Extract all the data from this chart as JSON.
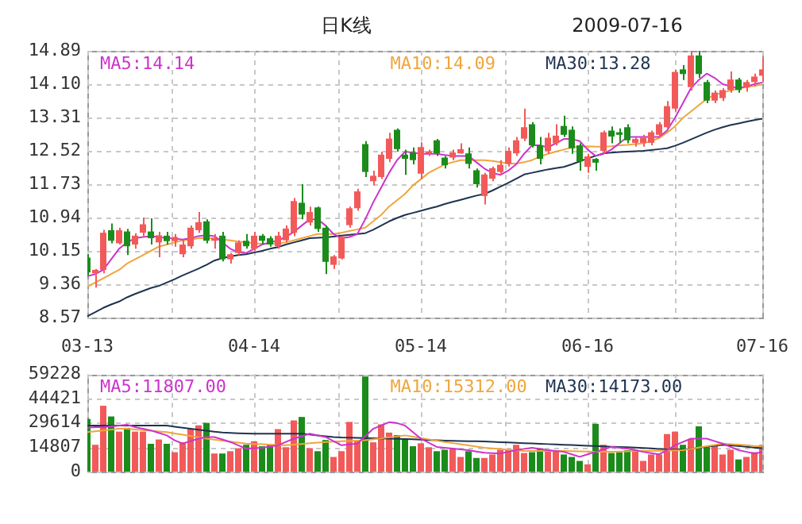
{
  "chart_data": [
    {
      "type": "candlestick",
      "title": "日K线",
      "subtitle": "2009-07-16",
      "categories": [
        "03-13",
        null,
        null,
        null,
        null,
        null,
        null,
        null,
        null,
        null,
        null,
        null,
        null,
        null,
        null,
        null,
        null,
        null,
        null,
        null,
        null,
        "04-14",
        null,
        null,
        null,
        null,
        null,
        null,
        null,
        null,
        null,
        null,
        null,
        null,
        null,
        null,
        null,
        null,
        null,
        null,
        null,
        null,
        "05-14",
        null,
        null,
        null,
        null,
        null,
        null,
        null,
        null,
        null,
        null,
        null,
        null,
        null,
        null,
        null,
        null,
        null,
        null,
        null,
        null,
        "06-16",
        null,
        null,
        null,
        null,
        null,
        null,
        null,
        null,
        null,
        null,
        null,
        null,
        null,
        null,
        null,
        null,
        null,
        null,
        null,
        null,
        null,
        "07-16"
      ],
      "ohlc": [
        [
          9.99,
          10.07,
          9.57,
          9.64
        ],
        [
          9.62,
          9.72,
          9.28,
          9.7
        ],
        [
          9.7,
          10.65,
          9.62,
          10.58
        ],
        [
          10.64,
          10.8,
          10.33,
          10.39
        ],
        [
          10.33,
          10.7,
          10.3,
          10.64
        ],
        [
          10.61,
          10.67,
          10.05,
          10.26
        ],
        [
          10.3,
          10.57,
          10.2,
          10.51
        ],
        [
          10.58,
          10.94,
          10.5,
          10.78
        ],
        [
          10.61,
          10.92,
          10.3,
          10.45
        ],
        [
          10.35,
          10.6,
          10.0,
          10.52
        ],
        [
          10.51,
          10.6,
          10.3,
          10.38
        ],
        [
          10.38,
          10.55,
          10.25,
          10.48
        ],
        [
          10.07,
          10.42,
          10.0,
          10.3
        ],
        [
          10.26,
          10.75,
          10.2,
          10.7
        ],
        [
          10.64,
          11.07,
          10.58,
          10.83
        ],
        [
          10.85,
          10.9,
          10.33,
          10.39
        ],
        [
          10.39,
          10.55,
          10.2,
          10.45
        ],
        [
          10.51,
          10.6,
          9.9,
          9.95
        ],
        [
          9.95,
          10.1,
          9.85,
          10.07
        ],
        [
          10.1,
          10.4,
          10.05,
          10.35
        ],
        [
          10.39,
          10.55,
          10.2,
          10.26
        ],
        [
          10.2,
          10.6,
          10.15,
          10.51
        ],
        [
          10.51,
          10.55,
          10.3,
          10.39
        ],
        [
          10.45,
          10.5,
          10.25,
          10.3
        ],
        [
          10.26,
          10.6,
          10.2,
          10.51
        ],
        [
          10.4,
          10.75,
          10.35,
          10.68
        ],
        [
          10.58,
          11.4,
          10.5,
          11.33
        ],
        [
          11.29,
          11.73,
          10.9,
          11.01
        ],
        [
          10.82,
          11.2,
          10.75,
          11.07
        ],
        [
          11.18,
          11.2,
          10.6,
          10.67
        ],
        [
          10.7,
          10.75,
          9.6,
          9.89
        ],
        [
          9.82,
          10.05,
          9.72,
          10.02
        ],
        [
          9.97,
          10.5,
          9.95,
          10.48
        ],
        [
          10.76,
          11.2,
          10.7,
          11.16
        ],
        [
          11.16,
          11.62,
          11.1,
          11.56
        ],
        [
          12.68,
          12.75,
          11.9,
          12.02
        ],
        [
          11.8,
          12.05,
          11.7,
          11.93
        ],
        [
          11.9,
          12.5,
          11.85,
          12.43
        ],
        [
          12.33,
          12.95,
          12.25,
          12.81
        ],
        [
          13.02,
          13.05,
          12.5,
          12.56
        ],
        [
          12.43,
          12.55,
          11.95,
          12.33
        ],
        [
          12.48,
          12.6,
          12.2,
          12.3
        ],
        [
          11.98,
          12.72,
          11.85,
          12.61
        ],
        [
          12.46,
          12.55,
          12.4,
          12.51
        ],
        [
          12.77,
          12.8,
          12.4,
          12.46
        ],
        [
          12.36,
          12.4,
          12.1,
          12.18
        ],
        [
          12.36,
          12.55,
          12.3,
          12.48
        ],
        [
          12.46,
          12.7,
          12.45,
          12.56
        ],
        [
          12.46,
          12.6,
          12.1,
          12.21
        ],
        [
          12.06,
          12.1,
          11.65,
          11.73
        ],
        [
          11.45,
          12.0,
          11.25,
          11.96
        ],
        [
          11.86,
          12.15,
          11.8,
          12.11
        ],
        [
          12.02,
          12.3,
          11.95,
          12.19
        ],
        [
          12.21,
          12.6,
          12.15,
          12.52
        ],
        [
          12.46,
          12.85,
          12.4,
          12.77
        ],
        [
          12.81,
          13.52,
          12.75,
          13.08
        ],
        [
          13.15,
          13.2,
          12.6,
          12.65
        ],
        [
          12.65,
          12.85,
          12.2,
          12.33
        ],
        [
          12.52,
          12.95,
          12.45,
          12.83
        ],
        [
          12.7,
          13.15,
          12.65,
          12.88
        ],
        [
          13.11,
          13.35,
          12.85,
          12.9
        ],
        [
          13.02,
          13.1,
          12.45,
          12.58
        ],
        [
          12.65,
          12.7,
          12.05,
          12.27
        ],
        [
          12.14,
          12.45,
          12.0,
          12.39
        ],
        [
          12.33,
          12.35,
          12.05,
          12.24
        ],
        [
          12.52,
          13.0,
          12.45,
          12.96
        ],
        [
          13.0,
          13.1,
          12.7,
          12.86
        ],
        [
          12.96,
          13.05,
          12.7,
          12.9
        ],
        [
          13.08,
          13.15,
          12.7,
          12.77
        ],
        [
          12.71,
          12.85,
          12.62,
          12.8
        ],
        [
          12.71,
          12.9,
          12.62,
          12.83
        ],
        [
          12.71,
          13.0,
          12.65,
          12.96
        ],
        [
          12.9,
          13.2,
          12.85,
          13.15
        ],
        [
          13.08,
          13.7,
          13.05,
          13.58
        ],
        [
          13.52,
          14.45,
          13.45,
          14.39
        ],
        [
          14.45,
          14.55,
          14.2,
          14.34
        ],
        [
          14.03,
          14.89,
          13.95,
          14.78
        ],
        [
          14.78,
          14.89,
          14.25,
          14.34
        ],
        [
          14.15,
          14.2,
          13.65,
          13.71
        ],
        [
          13.71,
          13.95,
          13.65,
          13.9
        ],
        [
          13.77,
          14.0,
          13.7,
          13.96
        ],
        [
          13.96,
          14.4,
          13.9,
          14.21
        ],
        [
          14.21,
          14.25,
          13.9,
          13.96
        ],
        [
          14.02,
          14.2,
          13.92,
          14.15
        ],
        [
          14.15,
          14.35,
          14.05,
          14.28
        ],
        [
          14.3,
          14.72,
          14.15,
          14.45
        ]
      ],
      "colors": [
        "#1b8c1b",
        "#f25a5a",
        "#f25a5a",
        "#1b8c1b",
        "#f25a5a",
        "#1b8c1b",
        "#f25a5a",
        "#f25a5a",
        "#1b8c1b",
        "#f25a5a",
        "#1b8c1b",
        "#f25a5a",
        "#f25a5a",
        "#f25a5a",
        "#f25a5a",
        "#1b8c1b",
        "#f25a5a",
        "#1b8c1b",
        "#f25a5a",
        "#f25a5a",
        "#1b8c1b",
        "#f25a5a",
        "#1b8c1b",
        "#1b8c1b",
        "#f25a5a",
        "#f25a5a",
        "#f25a5a",
        "#1b8c1b",
        "#f25a5a",
        "#1b8c1b",
        "#1b8c1b",
        "#f25a5a",
        "#f25a5a",
        "#f25a5a",
        "#f25a5a",
        "#1b8c1b",
        "#f25a5a",
        "#f25a5a",
        "#f25a5a",
        "#1b8c1b",
        "#1b8c1b",
        "#1b8c1b",
        "#f25a5a",
        "#f25a5a",
        "#1b8c1b",
        "#1b8c1b",
        "#f25a5a",
        "#f25a5a",
        "#1b8c1b",
        "#1b8c1b",
        "#f25a5a",
        "#f25a5a",
        "#f25a5a",
        "#f25a5a",
        "#f25a5a",
        "#f25a5a",
        "#1b8c1b",
        "#1b8c1b",
        "#f25a5a",
        "#f25a5a",
        "#1b8c1b",
        "#1b8c1b",
        "#1b8c1b",
        "#f25a5a",
        "#1b8c1b",
        "#f25a5a",
        "#1b8c1b",
        "#1b8c1b",
        "#1b8c1b",
        "#f25a5a",
        "#f25a5a",
        "#f25a5a",
        "#f25a5a",
        "#f25a5a",
        "#f25a5a",
        "#1b8c1b",
        "#f25a5a",
        "#1b8c1b",
        "#1b8c1b",
        "#f25a5a",
        "#f25a5a",
        "#f25a5a",
        "#1b8c1b",
        "#f25a5a",
        "#f25a5a",
        "#f25a5a"
      ],
      "series": [
        {
          "type": "line",
          "name": "MA5:14.14",
          "color": "#cc33cc",
          "values": [
            9.55,
            9.6,
            9.7,
            9.95,
            10.2,
            10.35,
            10.45,
            10.48,
            10.5,
            10.48,
            10.45,
            10.44,
            10.42,
            10.45,
            10.5,
            10.52,
            10.5,
            10.35,
            10.2,
            10.12,
            10.1,
            10.2,
            10.3,
            10.35,
            10.4,
            10.48,
            10.6,
            10.75,
            10.9,
            10.9,
            10.75,
            10.55,
            10.45,
            10.48,
            10.55,
            10.9,
            11.3,
            11.65,
            12.0,
            12.3,
            12.5,
            12.48,
            12.45,
            12.45,
            12.45,
            12.42,
            12.4,
            12.4,
            12.4,
            12.25,
            12.1,
            12.0,
            11.95,
            12.05,
            12.2,
            12.45,
            12.65,
            12.65,
            12.6,
            12.7,
            12.8,
            12.8,
            12.75,
            12.55,
            12.4,
            12.45,
            12.55,
            12.7,
            12.85,
            12.85,
            12.85,
            12.85,
            12.85,
            13.0,
            13.3,
            13.65,
            14.0,
            14.2,
            14.35,
            14.25,
            14.1,
            14.05,
            14.0,
            14.05,
            14.1,
            14.14
          ]
        },
        {
          "type": "line",
          "name": "MA10:14.09",
          "color": "#f0a53c",
          "values": [
            9.3,
            9.4,
            9.5,
            9.6,
            9.7,
            9.85,
            9.95,
            10.05,
            10.15,
            10.25,
            10.3,
            10.35,
            10.4,
            10.42,
            10.45,
            10.45,
            10.45,
            10.42,
            10.4,
            10.37,
            10.35,
            10.33,
            10.32,
            10.32,
            10.33,
            10.35,
            10.4,
            10.45,
            10.5,
            10.55,
            10.55,
            10.55,
            10.58,
            10.62,
            10.66,
            10.7,
            10.85,
            11.0,
            11.2,
            11.35,
            11.5,
            11.7,
            11.85,
            12.0,
            12.1,
            12.2,
            12.25,
            12.3,
            12.3,
            12.3,
            12.3,
            12.28,
            12.25,
            12.22,
            12.22,
            12.25,
            12.3,
            12.38,
            12.45,
            12.5,
            12.55,
            12.6,
            12.62,
            12.63,
            12.62,
            12.62,
            12.63,
            12.65,
            12.66,
            12.68,
            12.7,
            12.75,
            12.82,
            12.95,
            13.1,
            13.3,
            13.45,
            13.6,
            13.75,
            13.85,
            13.9,
            13.95,
            14.0,
            14.03,
            14.06,
            14.09
          ]
        },
        {
          "type": "line",
          "name": "MA30:13.28",
          "color": "#1f3350",
          "values": [
            8.6,
            8.7,
            8.8,
            8.88,
            8.95,
            9.05,
            9.13,
            9.2,
            9.27,
            9.32,
            9.4,
            9.48,
            9.57,
            9.65,
            9.73,
            9.82,
            9.92,
            9.98,
            10.02,
            10.05,
            10.07,
            10.11,
            10.15,
            10.2,
            10.24,
            10.3,
            10.35,
            10.4,
            10.45,
            10.46,
            10.47,
            10.49,
            10.51,
            10.53,
            10.55,
            10.57,
            10.65,
            10.75,
            10.85,
            10.93,
            11.0,
            11.05,
            11.1,
            11.15,
            11.2,
            11.26,
            11.31,
            11.36,
            11.41,
            11.46,
            11.5,
            11.58,
            11.67,
            11.76,
            11.86,
            11.96,
            12.0,
            12.04,
            12.08,
            12.11,
            12.14,
            12.2,
            12.27,
            12.34,
            12.4,
            12.46,
            12.48,
            12.49,
            12.5,
            12.51,
            12.52,
            12.54,
            12.56,
            12.58,
            12.64,
            12.71,
            12.79,
            12.87,
            12.95,
            13.02,
            13.08,
            13.13,
            13.17,
            13.21,
            13.25,
            13.28
          ]
        }
      ],
      "ylim": [
        8.57,
        14.89
      ],
      "yticks": [
        8.57,
        9.36,
        10.15,
        10.94,
        11.73,
        12.52,
        13.31,
        {
          "value": 14.1,
          "label": "14.10"
        },
        14.89
      ],
      "grid": true,
      "legend": "top"
    },
    {
      "type": "bar",
      "categories": [
        null,
        null,
        null,
        null,
        null,
        null,
        null,
        null,
        null,
        null,
        null,
        null,
        null,
        null,
        null,
        null,
        null,
        null,
        null,
        null,
        null,
        null,
        null,
        null,
        null,
        null,
        null,
        null,
        null,
        null,
        null,
        null,
        null,
        null,
        null,
        null,
        null,
        null,
        null,
        null,
        null,
        null,
        null,
        null,
        null,
        null,
        null,
        null,
        null,
        null,
        null,
        null,
        null,
        null,
        null,
        null,
        null,
        null,
        null,
        null,
        null,
        null,
        null,
        null,
        null,
        null,
        null,
        null,
        null,
        null,
        null,
        null,
        null,
        null,
        null,
        null,
        null,
        null,
        null,
        null,
        null,
        null,
        null,
        null,
        null,
        null
      ],
      "values": [
        32000,
        16300,
        40000,
        33500,
        24300,
        26600,
        24300,
        24300,
        16900,
        19500,
        16900,
        11800,
        17800,
        26100,
        28100,
        29600,
        11000,
        11000,
        12400,
        14200,
        16300,
        18400,
        15400,
        16300,
        25800,
        14800,
        31100,
        33200,
        14200,
        12400,
        19200,
        8900,
        12400,
        30200,
        18400,
        57700,
        17800,
        28700,
        23700,
        22200,
        20100,
        15400,
        17200,
        14800,
        12400,
        13300,
        14200,
        8900,
        12400,
        8300,
        8300,
        10400,
        13300,
        13300,
        16300,
        11300,
        11800,
        14200,
        13300,
        12400,
        10400,
        8900,
        6500,
        4400,
        29000,
        16300,
        11300,
        11800,
        13000,
        13300,
        6500,
        10400,
        10400,
        22800,
        24300,
        16300,
        19800,
        27500,
        14800,
        16300,
        10400,
        13300,
        7400,
        8900,
        11800,
        16300
      ],
      "colors": [
        "#1b8c1b",
        "#f25a5a",
        "#f25a5a",
        "#1b8c1b",
        "#f25a5a",
        "#1b8c1b",
        "#f25a5a",
        "#f25a5a",
        "#1b8c1b",
        "#f25a5a",
        "#1b8c1b",
        "#f25a5a",
        "#f25a5a",
        "#f25a5a",
        "#f25a5a",
        "#1b8c1b",
        "#f25a5a",
        "#1b8c1b",
        "#f25a5a",
        "#f25a5a",
        "#1b8c1b",
        "#f25a5a",
        "#1b8c1b",
        "#1b8c1b",
        "#f25a5a",
        "#f25a5a",
        "#f25a5a",
        "#1b8c1b",
        "#f25a5a",
        "#1b8c1b",
        "#1b8c1b",
        "#f25a5a",
        "#f25a5a",
        "#f25a5a",
        "#f25a5a",
        "#1b8c1b",
        "#f25a5a",
        "#f25a5a",
        "#f25a5a",
        "#1b8c1b",
        "#1b8c1b",
        "#1b8c1b",
        "#f25a5a",
        "#f25a5a",
        "#1b8c1b",
        "#1b8c1b",
        "#f25a5a",
        "#f25a5a",
        "#1b8c1b",
        "#1b8c1b",
        "#f25a5a",
        "#f25a5a",
        "#f25a5a",
        "#f25a5a",
        "#f25a5a",
        "#f25a5a",
        "#1b8c1b",
        "#1b8c1b",
        "#f25a5a",
        "#f25a5a",
        "#1b8c1b",
        "#1b8c1b",
        "#1b8c1b",
        "#f25a5a",
        "#1b8c1b",
        "#f25a5a",
        "#1b8c1b",
        "#1b8c1b",
        "#1b8c1b",
        "#f25a5a",
        "#f25a5a",
        "#f25a5a",
        "#f25a5a",
        "#f25a5a",
        "#f25a5a",
        "#1b8c1b",
        "#f25a5a",
        "#1b8c1b",
        "#1b8c1b",
        "#f25a5a",
        "#f25a5a",
        "#f25a5a",
        "#1b8c1b",
        "#f25a5a",
        "#f25a5a",
        "#f25a5a"
      ],
      "series": [
        {
          "type": "line",
          "name": "MA5:11807.00",
          "color": "#cc33cc",
          "values": [
            26600,
            27000,
            27000,
            27500,
            28000,
            28500,
            27000,
            26000,
            25000,
            23500,
            22000,
            19000,
            17000,
            18500,
            20000,
            21000,
            21000,
            19500,
            18000,
            16000,
            14000,
            14200,
            14500,
            15200,
            16000,
            18000,
            20000,
            21500,
            23000,
            22000,
            21000,
            18500,
            16000,
            16500,
            17000,
            21500,
            26000,
            28000,
            30000,
            29500,
            28000,
            24000,
            20000,
            17500,
            15000,
            14500,
            14000,
            13500,
            13000,
            12200,
            11500,
            11200,
            11000,
            12000,
            13000,
            13800,
            14500,
            13800,
            13000,
            12500,
            12000,
            10500,
            9000,
            10500,
            12000,
            13500,
            15000,
            14500,
            14000,
            13000,
            12000,
            11200,
            10500,
            13000,
            16000,
            18000,
            20000,
            20000,
            20000,
            18500,
            17000,
            15000,
            13000,
            12000,
            11000,
            11807
          ]
        },
        {
          "type": "line",
          "name": "MA10:15312.00",
          "color": "#f0a53c",
          "values": [
            24000,
            24500,
            25000,
            25500,
            26000,
            26000,
            25600,
            25200,
            24800,
            24400,
            24000,
            23200,
            22400,
            21600,
            20800,
            20000,
            19400,
            18800,
            18200,
            17600,
            17000,
            16800,
            16600,
            16400,
            16200,
            16000,
            16400,
            16800,
            17200,
            17600,
            18000,
            18200,
            18400,
            18600,
            18800,
            19000,
            19600,
            20200,
            20800,
            21400,
            22000,
            21200,
            20400,
            19600,
            18800,
            18000,
            17300,
            16600,
            15900,
            15200,
            14500,
            14100,
            13700,
            13300,
            12900,
            12500,
            12500,
            12500,
            12500,
            12500,
            12500,
            12400,
            12300,
            12200,
            12100,
            12000,
            12100,
            12200,
            12300,
            12400,
            12500,
            12600,
            12700,
            12800,
            12900,
            13000,
            13800,
            14600,
            15400,
            16200,
            17000,
            16700,
            16400,
            16000,
            15600,
            15312
          ]
        },
        {
          "type": "line",
          "name": "MA30:14173.00",
          "color": "#1f3350",
          "values": [
            28000,
            28000,
            28000,
            28000,
            28000,
            28000,
            28000,
            28000,
            28000,
            28000,
            28000,
            27300,
            26600,
            26000,
            25400,
            24800,
            24200,
            23700,
            23500,
            23300,
            23100,
            23000,
            23000,
            23000,
            23000,
            23000,
            23000,
            23000,
            22500,
            22000,
            21500,
            21000,
            20700,
            20600,
            20500,
            20400,
            20300,
            20100,
            20000,
            19900,
            19800,
            19600,
            19400,
            19200,
            19000,
            18800,
            18700,
            18600,
            18500,
            18400,
            18350,
            18100,
            17900,
            17700,
            17500,
            17300,
            17100,
            16900,
            16700,
            16500,
            16280,
            16100,
            15900,
            15700,
            15500,
            15300,
            15100,
            14950,
            14800,
            14600,
            14400,
            14100,
            13800,
            13500,
            13400,
            13320,
            13900,
            14500,
            15100,
            15700,
            16280,
            15900,
            15500,
            15100,
            14600,
            14173
          ]
        }
      ],
      "ylim": [
        0,
        59228
      ],
      "yticks": [
        0,
        14807,
        29614,
        44421,
        59228
      ],
      "grid": true,
      "legend": "top",
      "tick_labels": "y"
    }
  ]
}
